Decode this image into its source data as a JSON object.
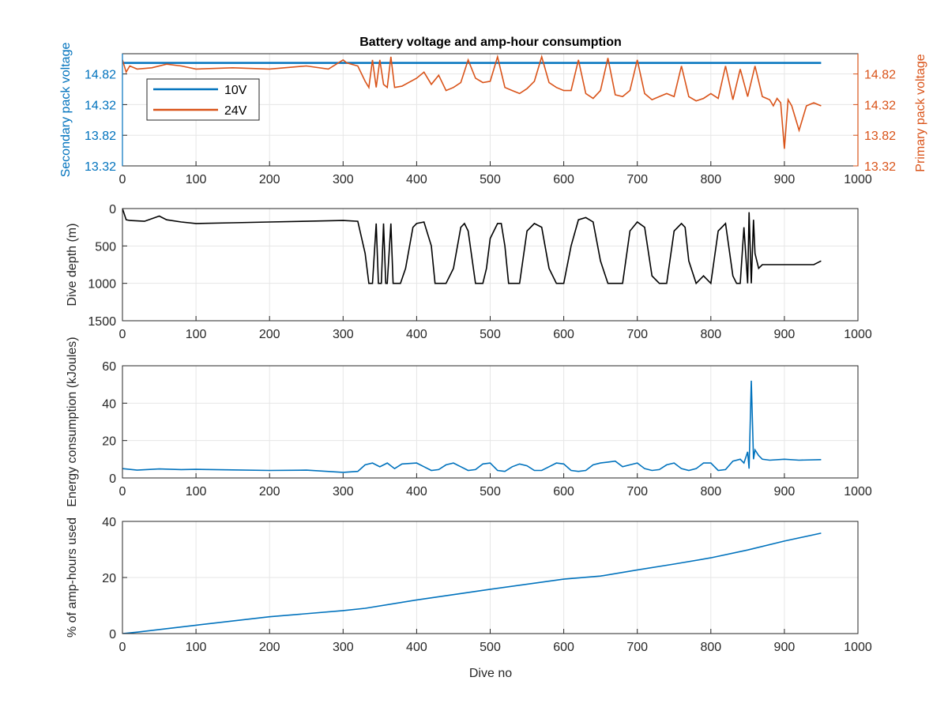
{
  "title": "Battery voltage and amp-hour consumption",
  "colors": {
    "v10": "#0072BD",
    "v24": "#D95319",
    "depth": "#000000",
    "energy": "#0072BD",
    "amphours": "#0072BD",
    "grid": "#e6e6e6",
    "axis": "#262626"
  },
  "chart_data": [
    {
      "type": "line",
      "title": "Battery voltage and amp-hour consumption",
      "ylabel_left": "Secondary pack voltage",
      "ylabel_right": "Primary pack voltage",
      "xlim": [
        0,
        1000
      ],
      "xticks": [
        0,
        100,
        200,
        300,
        400,
        500,
        600,
        700,
        800,
        900,
        1000
      ],
      "ylim_left": [
        13.32,
        15.15
      ],
      "ylim_right": [
        13.32,
        15.15
      ],
      "yticks_left": [
        "14.82",
        "14.32",
        "13.82",
        "13.32"
      ],
      "yticks_right": [
        "14.82",
        "14.32",
        "13.82",
        "13.32"
      ],
      "legend_position": "top-left",
      "grid": true,
      "series": [
        {
          "name": "10V",
          "axis": "left",
          "x": [
            0,
            950
          ],
          "y": [
            15.0,
            15.0
          ]
        },
        {
          "name": "24V",
          "axis": "right",
          "x": [
            0,
            5,
            10,
            20,
            40,
            60,
            80,
            100,
            150,
            200,
            250,
            280,
            300,
            305,
            320,
            330,
            335,
            340,
            345,
            350,
            355,
            360,
            365,
            370,
            380,
            400,
            410,
            420,
            430,
            440,
            450,
            460,
            470,
            480,
            490,
            500,
            510,
            520,
            530,
            540,
            550,
            560,
            570,
            580,
            590,
            600,
            610,
            620,
            630,
            640,
            650,
            660,
            670,
            680,
            690,
            700,
            710,
            720,
            730,
            740,
            750,
            760,
            770,
            780,
            790,
            800,
            810,
            820,
            830,
            840,
            850,
            860,
            870,
            880,
            885,
            890,
            895,
            900,
            905,
            910,
            920,
            930,
            940,
            950
          ],
          "y": [
            15.05,
            14.85,
            14.95,
            14.9,
            14.92,
            14.98,
            14.95,
            14.9,
            14.92,
            14.9,
            14.95,
            14.9,
            15.05,
            15.0,
            14.95,
            14.7,
            14.6,
            15.05,
            14.6,
            15.05,
            14.65,
            14.6,
            15.1,
            14.6,
            14.62,
            14.75,
            14.85,
            14.65,
            14.8,
            14.55,
            14.6,
            14.68,
            15.05,
            14.75,
            14.68,
            14.7,
            15.1,
            14.6,
            14.55,
            14.5,
            14.58,
            14.7,
            15.1,
            14.68,
            14.6,
            14.55,
            14.55,
            15.05,
            14.5,
            14.42,
            14.55,
            15.08,
            14.48,
            14.45,
            14.55,
            15.05,
            14.5,
            14.4,
            14.45,
            14.5,
            14.45,
            14.95,
            14.45,
            14.38,
            14.42,
            14.5,
            14.42,
            14.95,
            14.4,
            14.9,
            14.45,
            14.95,
            14.45,
            14.4,
            14.3,
            14.42,
            14.35,
            13.6,
            14.4,
            14.3,
            13.9,
            14.3,
            14.35,
            14.3
          ]
        }
      ]
    },
    {
      "type": "line",
      "ylabel": "Dive depth (m)",
      "xlim": [
        0,
        1000
      ],
      "ylim": [
        1500,
        0
      ],
      "y_reversed": true,
      "xticks": [
        0,
        100,
        200,
        300,
        400,
        500,
        600,
        700,
        800,
        900,
        1000
      ],
      "yticks": [
        "0",
        "500",
        "1000",
        "1500"
      ],
      "grid": true,
      "series": [
        {
          "name": "",
          "x": [
            0,
            5,
            10,
            30,
            50,
            60,
            80,
            100,
            150,
            200,
            250,
            300,
            320,
            330,
            335,
            340,
            345,
            348,
            352,
            355,
            358,
            360,
            365,
            368,
            372,
            378,
            385,
            395,
            400,
            410,
            420,
            425,
            430,
            440,
            450,
            460,
            465,
            470,
            480,
            490,
            495,
            500,
            510,
            515,
            520,
            525,
            530,
            540,
            550,
            560,
            570,
            580,
            590,
            600,
            610,
            620,
            630,
            640,
            650,
            660,
            670,
            680,
            690,
            700,
            710,
            720,
            730,
            740,
            750,
            760,
            765,
            770,
            780,
            790,
            800,
            810,
            820,
            830,
            835,
            840,
            845,
            850,
            852,
            855,
            858,
            860,
            865,
            870,
            880,
            900,
            920,
            940,
            950
          ],
          "y": [
            0,
            150,
            160,
            170,
            100,
            150,
            180,
            200,
            190,
            180,
            170,
            160,
            170,
            600,
            1000,
            1000,
            200,
            1000,
            1000,
            200,
            1000,
            1000,
            200,
            1000,
            1000,
            1000,
            800,
            250,
            200,
            180,
            500,
            1000,
            1000,
            1000,
            800,
            250,
            200,
            300,
            1000,
            1000,
            800,
            400,
            200,
            200,
            500,
            1000,
            1000,
            1000,
            300,
            200,
            250,
            800,
            1000,
            1000,
            500,
            150,
            120,
            180,
            700,
            1000,
            1000,
            1000,
            300,
            180,
            250,
            900,
            1000,
            1000,
            300,
            200,
            250,
            700,
            1000,
            900,
            1000,
            300,
            200,
            900,
            1000,
            1000,
            250,
            1000,
            50,
            1000,
            150,
            600,
            800,
            750,
            750,
            750,
            750,
            750,
            700
          ]
        }
      ]
    },
    {
      "type": "line",
      "ylabel": "Energy consumption (kJoules)",
      "xlim": [
        0,
        1000
      ],
      "ylim": [
        0,
        60
      ],
      "xticks": [
        0,
        100,
        200,
        300,
        400,
        500,
        600,
        700,
        800,
        900,
        1000
      ],
      "yticks": [
        "0",
        "20",
        "40",
        "60"
      ],
      "grid": true,
      "series": [
        {
          "name": "",
          "x": [
            0,
            20,
            50,
            80,
            100,
            150,
            200,
            250,
            300,
            320,
            330,
            340,
            350,
            360,
            370,
            380,
            400,
            410,
            420,
            430,
            440,
            450,
            460,
            470,
            480,
            490,
            500,
            510,
            520,
            530,
            540,
            550,
            560,
            570,
            580,
            590,
            600,
            610,
            620,
            630,
            640,
            650,
            660,
            670,
            680,
            690,
            700,
            710,
            720,
            730,
            740,
            750,
            760,
            770,
            780,
            790,
            800,
            810,
            820,
            830,
            840,
            845,
            850,
            852,
            855,
            858,
            860,
            865,
            870,
            880,
            900,
            920,
            950
          ],
          "y": [
            5,
            4.2,
            4.8,
            4.5,
            4.6,
            4.3,
            4.0,
            4.2,
            3.0,
            3.5,
            7.0,
            8.0,
            6.0,
            8.0,
            5.0,
            7.5,
            8.0,
            6.0,
            4.0,
            4.5,
            7.0,
            8.0,
            6.0,
            4.0,
            4.5,
            7.5,
            8.0,
            4.0,
            3.5,
            6.0,
            7.5,
            6.5,
            4.0,
            4.0,
            6.0,
            8.0,
            7.5,
            4.0,
            3.5,
            4.0,
            7.0,
            8.0,
            8.5,
            9.0,
            6.0,
            7.0,
            8.0,
            5.0,
            4.0,
            4.5,
            7.0,
            8.0,
            5.0,
            4.0,
            5.0,
            8.0,
            8.0,
            4.0,
            4.5,
            9.0,
            10.0,
            8.0,
            14.0,
            5.0,
            52.0,
            10.0,
            15.0,
            12.0,
            10.0,
            9.5,
            10.0,
            9.5,
            9.8
          ]
        }
      ]
    },
    {
      "type": "line",
      "ylabel": "% of amp-hours used",
      "xlabel": "Dive no",
      "xlim": [
        0,
        1000
      ],
      "ylim": [
        0,
        40
      ],
      "xticks": [
        0,
        100,
        200,
        300,
        400,
        500,
        600,
        700,
        800,
        900,
        1000
      ],
      "yticks": [
        "0",
        "20",
        "40"
      ],
      "grid": true,
      "series": [
        {
          "name": "",
          "x": [
            0,
            20,
            100,
            200,
            300,
            330,
            400,
            500,
            600,
            650,
            700,
            750,
            800,
            850,
            900,
            950
          ],
          "y": [
            0,
            0.5,
            3,
            6,
            8.2,
            9,
            12,
            15.8,
            19.4,
            20.5,
            22.7,
            24.8,
            27,
            29.8,
            33,
            35.8
          ]
        }
      ]
    }
  ]
}
